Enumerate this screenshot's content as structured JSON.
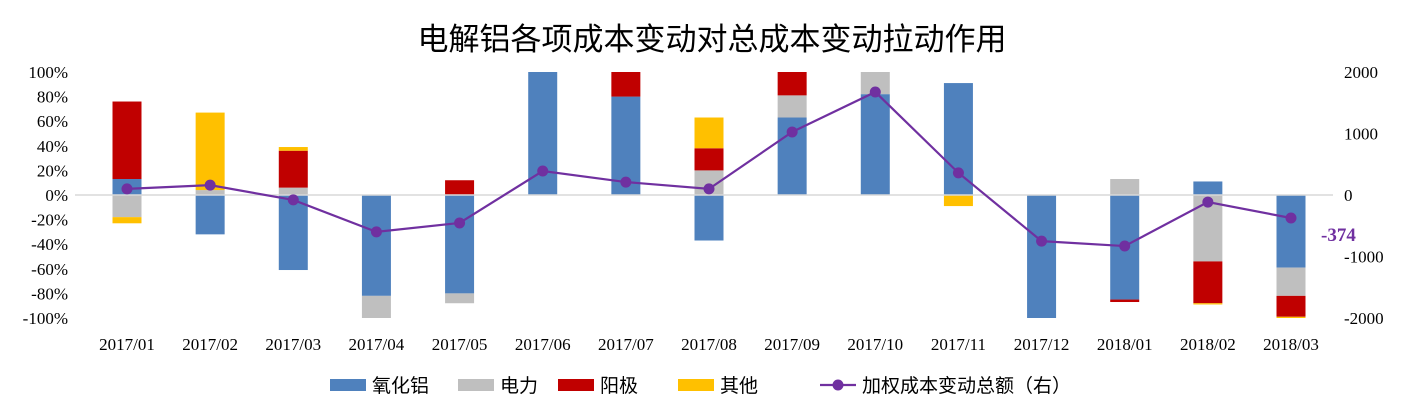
{
  "chart_data": {
    "type": "bar",
    "stacked": true,
    "title": "电解铝各项成本变动对总成本变动拉动作用",
    "categories": [
      "2017/01",
      "2017/02",
      "2017/03",
      "2017/04",
      "2017/05",
      "2017/06",
      "2017/07",
      "2017/08",
      "2017/09",
      "2017/10",
      "2017/11",
      "2017/12",
      "2018/01",
      "2018/02",
      "2018/03"
    ],
    "y_left": {
      "range": [
        -100,
        100
      ],
      "ticks": [
        "100%",
        "80%",
        "60%",
        "40%",
        "20%",
        "0%",
        "-20%",
        "-40%",
        "-60%",
        "-80%",
        "-100%"
      ],
      "unit": "%"
    },
    "y_right": {
      "range": [
        -2000,
        2000
      ],
      "ticks": [
        "2000",
        "1000",
        "0",
        "-1000",
        "-2000"
      ]
    },
    "series": [
      {
        "name": "氧化铝",
        "type": "bar",
        "color": "#4f81bd",
        "values": [
          13,
          -32,
          -61,
          -82,
          -80,
          100,
          80,
          -37,
          63,
          82,
          91,
          -100,
          -85,
          11,
          -59
        ]
      },
      {
        "name": "电力",
        "type": "bar",
        "color": "#bfbfbf",
        "values": [
          -18,
          4,
          6,
          -18,
          -8,
          0,
          0,
          20,
          18,
          18,
          0,
          0,
          13,
          -54,
          -23
        ]
      },
      {
        "name": "阳极",
        "type": "bar",
        "color": "#c00000",
        "values": [
          63,
          0,
          30,
          0,
          12,
          0,
          20,
          18,
          19,
          0,
          0,
          0,
          -2,
          -34,
          -17
        ]
      },
      {
        "name": "其他",
        "type": "bar",
        "color": "#ffc000",
        "values": [
          -5,
          63,
          3,
          0,
          0,
          0,
          0,
          25,
          0,
          0,
          -9,
          0,
          0,
          -1,
          -1
        ]
      },
      {
        "name": "加权成本变动总额（右）",
        "type": "line",
        "axis": "right",
        "color": "#7030a0",
        "values": [
          100,
          160,
          -80,
          -600,
          -455,
          390,
          210,
          100,
          1025,
          1675,
          360,
          -750,
          -830,
          -115,
          -374
        ]
      }
    ],
    "annotation": {
      "label": "-374",
      "color": "#7030a0"
    },
    "legend_position": "bottom",
    "grid": false
  }
}
